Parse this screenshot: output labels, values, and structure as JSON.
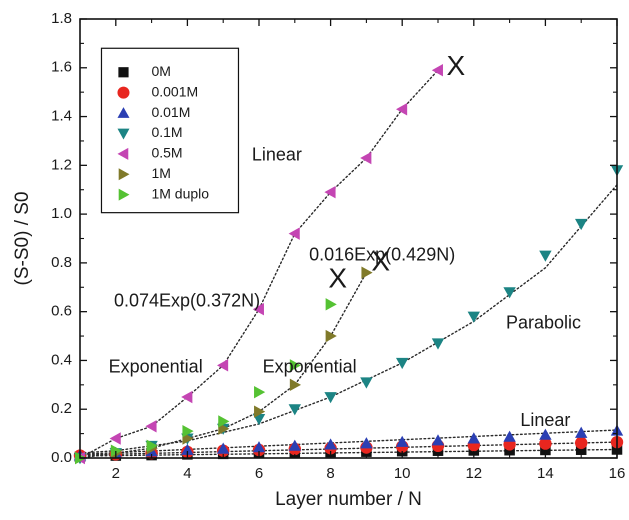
{
  "chart_data": {
    "type": "scatter",
    "xlabel": "Layer number / N",
    "ylabel": "(S-S0) / S0",
    "xlim": [
      1,
      16
    ],
    "ylim": [
      0.0,
      1.8
    ],
    "xticks": [
      2,
      4,
      6,
      8,
      10,
      12,
      14,
      16
    ],
    "yticks": [
      0.0,
      0.2,
      0.4,
      0.6,
      0.8,
      1.0,
      1.2,
      1.4,
      1.6,
      1.8
    ],
    "xtick_labels": [
      "2",
      "4",
      "6",
      "8",
      "10",
      "12",
      "14",
      "16"
    ],
    "ytick_labels": [
      "0.0",
      "0.2",
      "0.4",
      "0.6",
      "0.8",
      "1.0",
      "1.2",
      "1.4",
      "1.6",
      "1.8"
    ],
    "grid": false,
    "legend_position": "top-left",
    "series": [
      {
        "name": "0M",
        "marker": "square",
        "color": "#111111",
        "x": [
          1,
          2,
          3,
          4,
          5,
          6,
          7,
          8,
          9,
          10,
          11,
          12,
          13,
          14,
          15,
          16
        ],
        "y": [
          0.005,
          0.01,
          0.012,
          0.015,
          0.017,
          0.02,
          0.022,
          0.024,
          0.026,
          0.028,
          0.03,
          0.031,
          0.032,
          0.033,
          0.034,
          0.035
        ]
      },
      {
        "name": "0.001M",
        "marker": "circle",
        "color": "#e8261f",
        "x": [
          1,
          2,
          3,
          4,
          5,
          6,
          7,
          8,
          9,
          10,
          11,
          12,
          13,
          14,
          15,
          16
        ],
        "y": [
          0.01,
          0.015,
          0.02,
          0.025,
          0.03,
          0.033,
          0.037,
          0.04,
          0.043,
          0.047,
          0.05,
          0.053,
          0.056,
          0.059,
          0.062,
          0.065
        ]
      },
      {
        "name": "0.01M",
        "marker": "triangle-up",
        "color": "#2b3fb3",
        "x": [
          1,
          2,
          3,
          4,
          5,
          6,
          7,
          8,
          9,
          10,
          11,
          12,
          13,
          14,
          15,
          16
        ],
        "y": [
          0.01,
          0.02,
          0.027,
          0.033,
          0.038,
          0.044,
          0.05,
          0.055,
          0.06,
          0.066,
          0.072,
          0.08,
          0.087,
          0.095,
          0.103,
          0.112
        ]
      },
      {
        "name": "0.1M",
        "marker": "triangle-down",
        "color": "#1c8484",
        "x": [
          1,
          2,
          3,
          4,
          5,
          6,
          7,
          8,
          9,
          10,
          11,
          12,
          13,
          14,
          15,
          16
        ],
        "y": [
          0.0,
          0.02,
          0.05,
          0.08,
          0.12,
          0.16,
          0.2,
          0.25,
          0.31,
          0.39,
          0.47,
          0.58,
          0.68,
          0.83,
          0.96,
          1.18
        ]
      },
      {
        "name": "0.5M",
        "marker": "triangle-left",
        "color": "#c445b3",
        "x": [
          1,
          2,
          3,
          4,
          5,
          6,
          7,
          8,
          9,
          10,
          11
        ],
        "y": [
          0.0,
          0.08,
          0.13,
          0.25,
          0.38,
          0.61,
          0.92,
          1.09,
          1.23,
          1.43,
          1.59
        ]
      },
      {
        "name": "1M",
        "marker": "triangle-right",
        "color": "#807a2a",
        "x": [
          1,
          2,
          3,
          4,
          5,
          6,
          7,
          8,
          9
        ],
        "y": [
          0.0,
          0.02,
          0.04,
          0.08,
          0.12,
          0.19,
          0.3,
          0.5,
          0.76
        ]
      },
      {
        "name": "1M duplo",
        "marker": "triangle-right",
        "color": "#55c233",
        "x": [
          1,
          2,
          3,
          4,
          5,
          6,
          7,
          8
        ],
        "y": [
          0.0,
          0.03,
          0.05,
          0.11,
          0.15,
          0.27,
          0.38,
          0.63
        ]
      }
    ],
    "fits": [
      {
        "label": "0.5M linear",
        "x": [
          1,
          2,
          3,
          4,
          5,
          6,
          7,
          8,
          9,
          10,
          11
        ],
        "y": [
          0.0,
          0.08,
          0.13,
          0.25,
          0.38,
          0.61,
          0.92,
          1.09,
          1.23,
          1.43,
          1.59
        ]
      },
      {
        "label": "1M exponential",
        "x": [
          1,
          2,
          3,
          4,
          5,
          6,
          7,
          8,
          9
        ],
        "y": [
          0.0,
          0.02,
          0.04,
          0.08,
          0.12,
          0.19,
          0.3,
          0.5,
          0.76
        ]
      },
      {
        "label": "0.1M parabolic",
        "x": [
          1,
          2,
          4,
          6,
          8,
          10,
          12,
          14,
          16
        ],
        "y": [
          0.02,
          0.03,
          0.07,
          0.14,
          0.25,
          0.39,
          0.56,
          0.78,
          1.12
        ]
      },
      {
        "label": "0.01M linear",
        "x": [
          1,
          16
        ],
        "y": [
          0.015,
          0.115
        ]
      },
      {
        "label": "0.001M linear",
        "x": [
          1,
          16
        ],
        "y": [
          0.012,
          0.065
        ]
      },
      {
        "label": "0M linear",
        "x": [
          1,
          16
        ],
        "y": [
          0.008,
          0.035
        ]
      }
    ],
    "annotations": [
      {
        "text": "Linear",
        "x": 5.8,
        "y": 1.24
      },
      {
        "text": "0.016Exp(0.429N)",
        "x": 7.4,
        "y": 0.83
      },
      {
        "text": "0.074Exp(0.372N)",
        "x": 1.95,
        "y": 0.64
      },
      {
        "text": "Exponential",
        "x": 1.8,
        "y": 0.37
      },
      {
        "text": "Exponential",
        "x": 6.1,
        "y": 0.37
      },
      {
        "text": "Parabolic",
        "x": 12.9,
        "y": 0.55
      },
      {
        "text": "Linear",
        "x": 13.3,
        "y": 0.15
      },
      {
        "text": "X",
        "x": 11.5,
        "y": 1.6
      },
      {
        "text": "X",
        "x": 8.2,
        "y": 0.73
      },
      {
        "text": "X",
        "x": 9.4,
        "y": 0.8
      }
    ]
  }
}
